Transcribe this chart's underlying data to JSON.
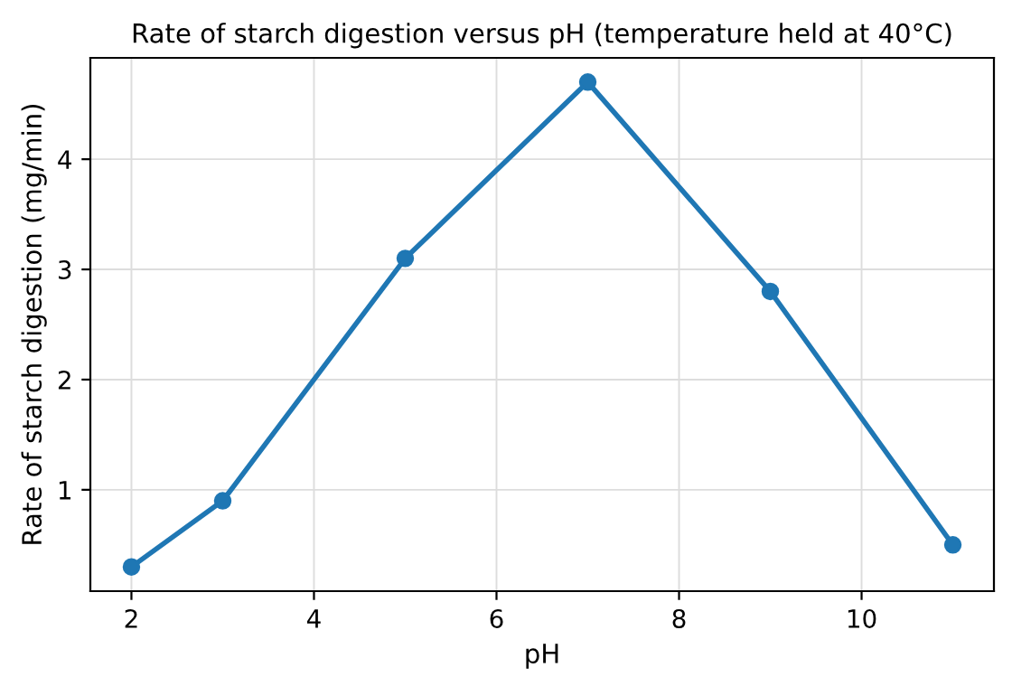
{
  "chart_data": {
    "type": "line",
    "title": "Rate of starch digestion versus pH (temperature held at 40°C)",
    "xlabel": "pH",
    "ylabel": "Rate of starch digestion (mg/min)",
    "x": [
      2,
      3,
      5,
      7,
      9,
      11
    ],
    "series": [
      {
        "color": "#1f77b4",
        "values": [
          0.3,
          0.9,
          3.1,
          4.7,
          2.8,
          0.5
        ]
      }
    ],
    "xlim": [
      1.55,
      11.45
    ],
    "ylim": [
      0.08,
      4.92
    ],
    "xticks": [
      2,
      4,
      6,
      8,
      10
    ],
    "yticks": [
      1,
      2,
      3,
      4
    ],
    "grid": true,
    "marker": "circle",
    "line_style": "solid"
  }
}
